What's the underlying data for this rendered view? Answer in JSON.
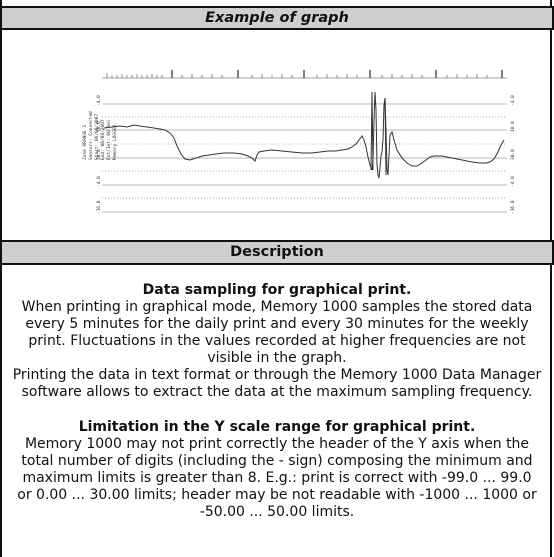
{
  "header_graph": "Example of graph",
  "header_description": "Description",
  "graph": {
    "legend_lines": [
      "Zone ORANGE 1",
      "Sensors: Connected",
      "Start: 06/08/2007",
      "End: 08/08/2007",
      "Ext/Int: 00 Sel",
      "Memory LOGGER"
    ],
    "axis_labels": [
      "-4.0",
      "10.0",
      "30.0",
      "-4.0",
      "-16.0"
    ]
  },
  "section1": {
    "title": "Data sampling for graphical print.",
    "lines": [
      "When printing in graphical mode, Memory 1000 samples the stored data",
      "every 5 minutes for the daily print and every 30 minutes for the weekly",
      "print. Fluctuations in the values recorded at higher frequencies are not",
      "visible in the graph.",
      "Printing the data in text format or through the Memory 1000 Data Manager",
      "software allows to extract the data at the maximum sampling frequency."
    ]
  },
  "section2": {
    "title": "Limitation in the Y scale range for graphical print.",
    "lines": [
      "Memory 1000 may not print correctly the header of the Y axis when the",
      "total number of digits (including the - sign) composing the minimum and",
      "maximum limits is greater than 8. E.g.: print is correct with -99.0 ... 99.0",
      "or 0.00 ... 30.00 limits; header may be not readable with -1000 ... 1000 or",
      "-50.00 ... 50.00 limits."
    ]
  }
}
